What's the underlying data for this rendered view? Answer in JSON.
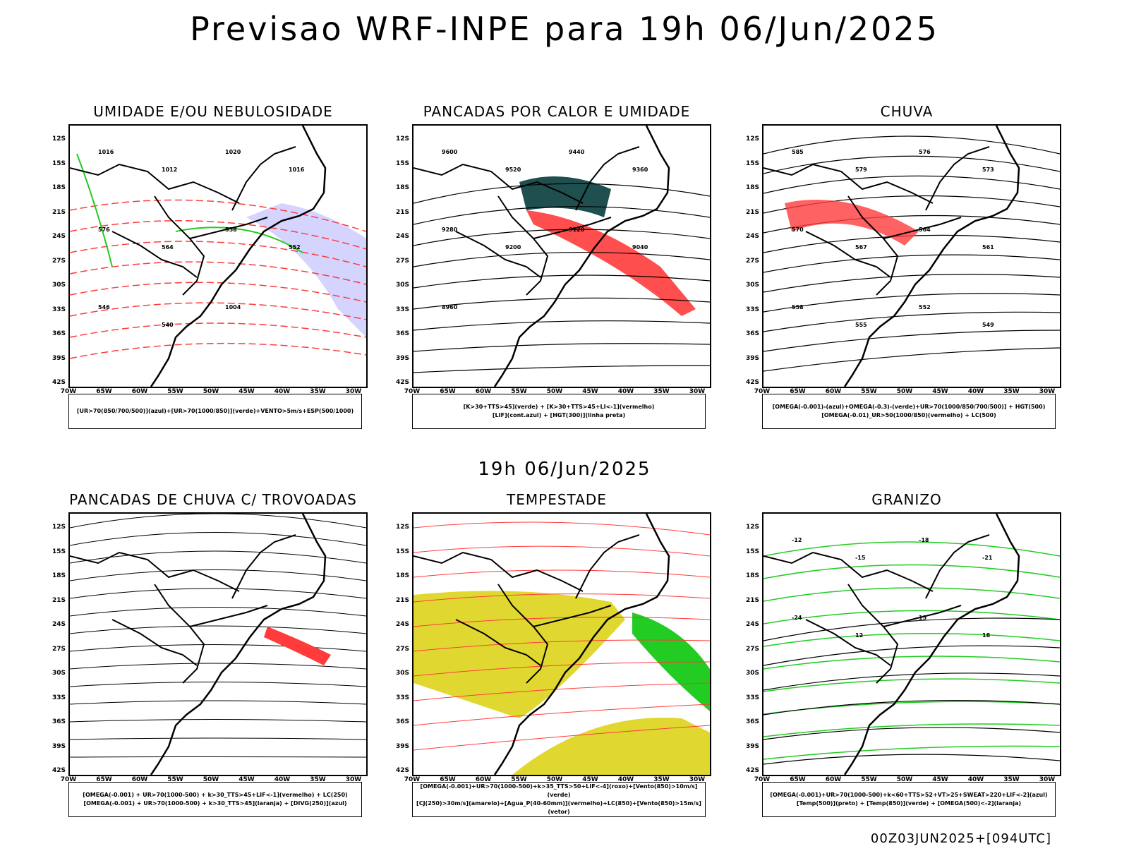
{
  "title": "Previsao WRF-INPE  para 19h 06/Jun/2025",
  "subtitle": "19h 06/Jun/2025",
  "footer": "00Z03JUN2025+[094UTC]",
  "lat_ticks": [
    "12S",
    "15S",
    "18S",
    "21S",
    "24S",
    "27S",
    "30S",
    "33S",
    "36S",
    "39S",
    "42S"
  ],
  "lon_ticks": [
    "70W",
    "65W",
    "60W",
    "55W",
    "50W",
    "45W",
    "40W",
    "35W",
    "30W"
  ],
  "colors": {
    "red": "#ff3b3b",
    "green": "#22cc22",
    "blue": "#2040ff",
    "teal": "#1f4f4f",
    "yellow": "#e0d830",
    "purple": "#a0a0ff",
    "orange": "#ff8020"
  },
  "panels": [
    {
      "title": "UMIDADE E/OU NEBULOSIDADE",
      "legend": [
        "[UR>70(850/700/500)](azul)+[UR>70(1000/850)](verde)+VENTO>5m/s+ESP(500/1000)"
      ],
      "contour_labels": [
        "1016",
        "1012",
        "1020",
        "1016",
        "576",
        "564",
        "558",
        "552",
        "546",
        "540",
        "1004"
      ]
    },
    {
      "title": "PANCADAS POR CALOR E UMIDADE",
      "legend": [
        "[K>30+TTS>45](verde) + [K>30+TTS>45+LI<-1](vermelho)",
        "[LIF](cont.azul) + [HGT(300)](linha preta)"
      ],
      "contour_labels": [
        "9600",
        "9520",
        "9440",
        "9360",
        "9280",
        "9200",
        "9120",
        "9040",
        "8960"
      ]
    },
    {
      "title": "CHUVA",
      "legend": [
        "[OMEGA(-0.001)-(azul)+OMEGA(-0.3)-(verde)+UR>70(1000/850/700/500)] + HGT(500)",
        "[OMEGA(-0.01)_UR>50(1000/850)(vermelho) + LC(500)"
      ],
      "contour_labels": [
        "585",
        "579",
        "576",
        "573",
        "570",
        "567",
        "564",
        "561",
        "558",
        "555",
        "552",
        "549"
      ]
    },
    {
      "title": "PANCADAS DE CHUVA C/ TROVOADAS",
      "legend": [
        "[OMEGA(-0.001) + UR>70(1000-500) + k>30_TTS>45+LIF<-1](vermelho) + LC(250)",
        "[OMEGA(-0.001) + UR>70(1000-500) + k>30_TTS>45](laranja) + [DIVG(250)](azul)"
      ],
      "contour_labels": []
    },
    {
      "title": "TEMPESTADE",
      "legend": [
        "[OMEGA(-0.001)+UR>70(1000-500)+k>35_TTS>50+LIF<-4](roxo)+[Vento(850)>10m/s](verde)",
        "[CJ(250)>30m/s](amarelo)+[Agua_P(40-60mm)](vermelho)+LC(850)+[Vento(850)>15m/s](vetor)"
      ],
      "contour_labels": []
    },
    {
      "title": "GRANIZO",
      "legend": [
        "[OMEGA(-0.001)+UR>70(1000-500)+k<60+TTS>52+VT>25+SWEAT>220+LIF<-2](azul)",
        "[Temp(500)](preto) + [Temp(850)](verde) + [OMEGA(500)<-2](laranja)"
      ],
      "contour_labels": [
        "-12",
        "-15",
        "-18",
        "-21",
        "-24",
        "12",
        "15",
        "18"
      ]
    }
  ]
}
